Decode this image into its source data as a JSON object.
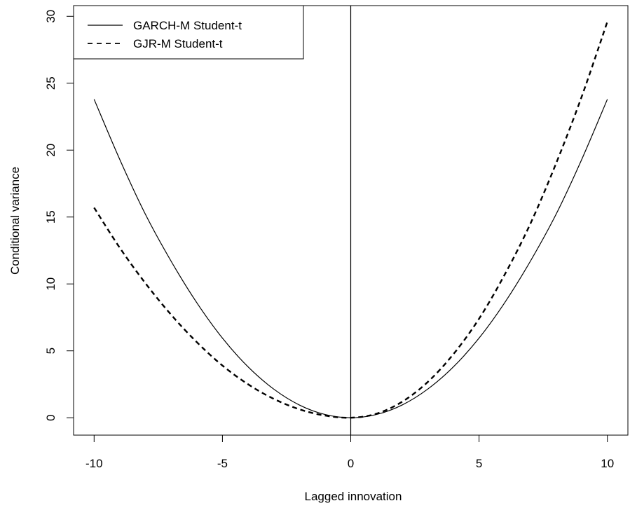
{
  "chart_data": {
    "type": "line",
    "title": "",
    "xlabel": "Lagged innovation",
    "ylabel": "Conditional variance",
    "xlim": [
      -10.8,
      10.8
    ],
    "ylim": [
      -1.3,
      30.8
    ],
    "xticks": [
      -10,
      -5,
      0,
      5,
      10
    ],
    "yticks": [
      0,
      5,
      10,
      15,
      20,
      25,
      30
    ],
    "xtick_labels": [
      "-10",
      "-5",
      "0",
      "5",
      "10"
    ],
    "ytick_labels": [
      "0",
      "5",
      "10",
      "15",
      "20",
      "25",
      "30"
    ],
    "grid": false,
    "legend_position": "top-left",
    "reference_lines": [
      {
        "orientation": "vertical",
        "x": 0
      }
    ],
    "x": [
      -10,
      -9,
      -8,
      -7,
      -6,
      -5,
      -4,
      -3,
      -2,
      -1,
      0,
      1,
      2,
      3,
      4,
      5,
      6,
      7,
      8,
      9,
      10
    ],
    "series": [
      {
        "name": "GARCH-M Student-t",
        "line_style": "solid",
        "color": "#000000",
        "values": [
          23.8,
          19.3,
          15.2,
          11.7,
          8.6,
          5.95,
          3.8,
          2.14,
          0.95,
          0.24,
          0,
          0.24,
          0.95,
          2.14,
          3.8,
          5.95,
          8.6,
          11.7,
          15.2,
          19.3,
          23.8
        ]
      },
      {
        "name": "GJR-M Student-t",
        "line_style": "dashed",
        "color": "#000000",
        "values": [
          15.7,
          12.7,
          10.05,
          7.7,
          5.65,
          3.9,
          2.5,
          1.41,
          0.63,
          0.16,
          0,
          0.3,
          1.19,
          2.67,
          4.75,
          7.4,
          10.7,
          14.5,
          19.0,
          24.0,
          29.6
        ]
      }
    ]
  }
}
